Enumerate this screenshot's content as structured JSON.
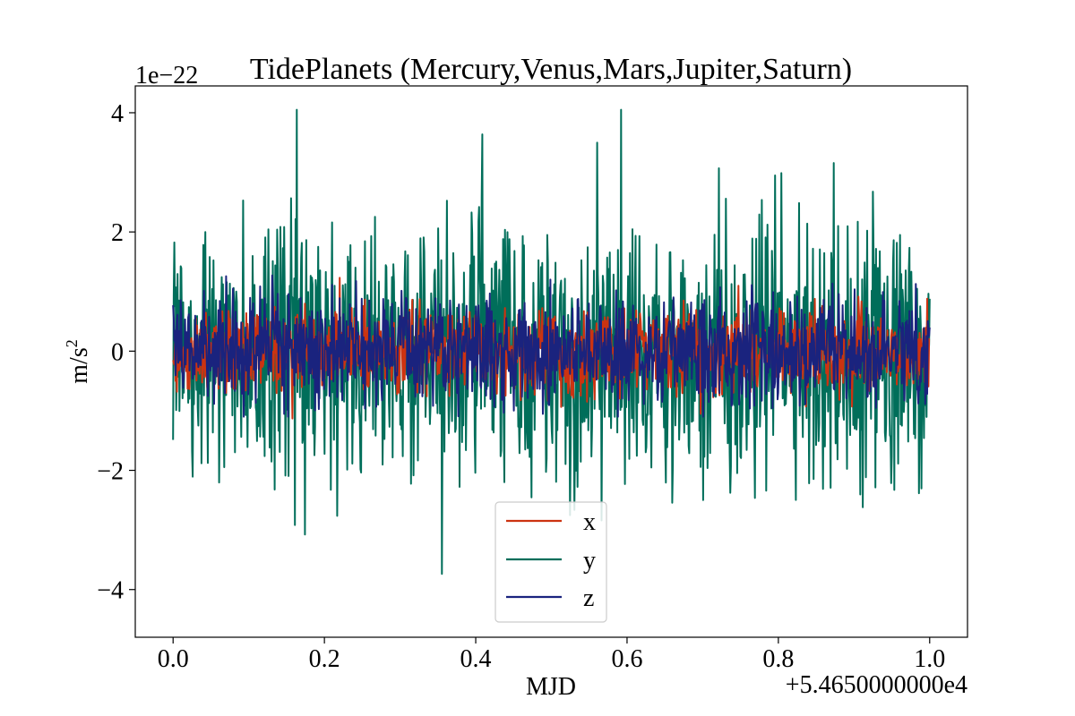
{
  "chart_data": {
    "type": "line",
    "title": "TidePlanets (Mercury,Venus,Mars,Jupiter,Saturn)",
    "xlabel": "MJD",
    "ylabel": "m/s",
    "ylabel_superscript": "2",
    "x_offset_text": "+5.4650000000e4",
    "y_scale_text": "1e−22",
    "xlim": [
      -0.05,
      1.05
    ],
    "ylim": [
      -4.8,
      4.45
    ],
    "x_ticks": [
      0.0,
      0.2,
      0.4,
      0.6,
      0.8,
      1.0
    ],
    "x_tick_labels": [
      "0.0",
      "0.2",
      "0.4",
      "0.6",
      "0.8",
      "1.0"
    ],
    "y_ticks": [
      -4,
      -2,
      0,
      2,
      4
    ],
    "y_tick_labels": [
      "−4",
      "−2",
      "0",
      "2",
      "4"
    ],
    "grid": false,
    "legend_position": "lower center",
    "series": [
      {
        "name": "x",
        "color": "#cc3311",
        "amplitude_1e-22": 0.35,
        "min_1e-22": -1.5,
        "max_1e-22": 1.4
      },
      {
        "name": "y",
        "color": "#006e5a",
        "amplitude_1e-22": 1.1,
        "min_1e-22": -4.4,
        "max_1e-22": 4.05
      },
      {
        "name": "z",
        "color": "#1a237e",
        "amplitude_1e-22": 0.45,
        "min_1e-22": -1.1,
        "max_1e-22": 1.5
      }
    ],
    "x_range": [
      0.0,
      1.0
    ],
    "n_points": 1200
  }
}
